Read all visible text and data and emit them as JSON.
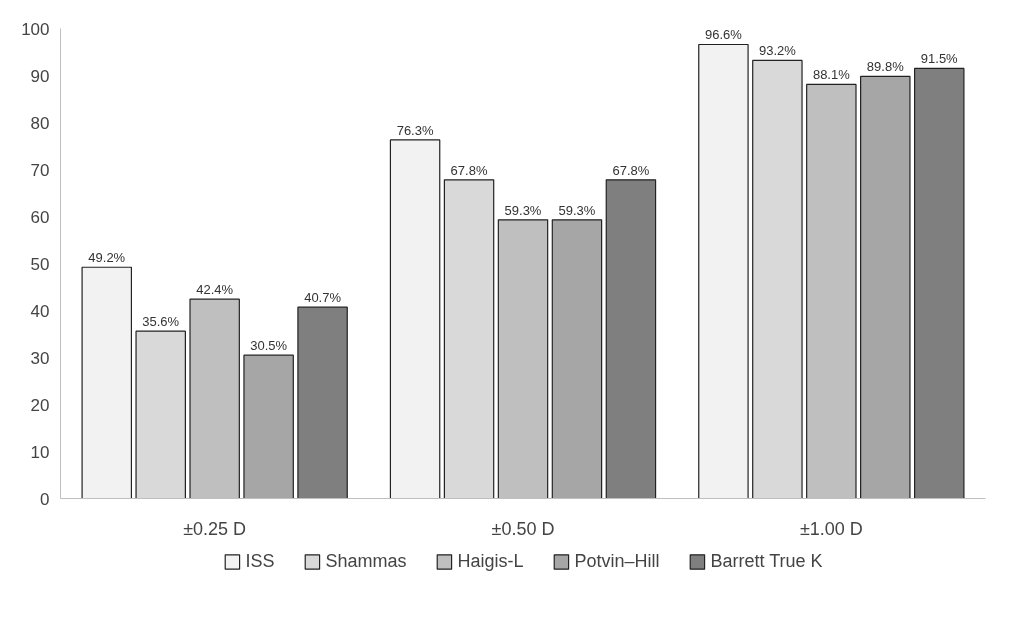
{
  "chart_data": {
    "type": "bar",
    "categories": [
      "±0.25 D",
      "±0.50 D",
      "±1.00 D"
    ],
    "series": [
      {
        "name": "ISS",
        "color": "#f2f2f2",
        "values": [
          49.2,
          76.3,
          96.6
        ],
        "value_labels": [
          "49.2%",
          "76.3%",
          "96.6%"
        ]
      },
      {
        "name": "Shammas",
        "color": "#d9d9d9",
        "values": [
          35.6,
          67.8,
          93.2
        ],
        "value_labels": [
          "35.6%",
          "67.8%",
          "93.2%"
        ]
      },
      {
        "name": "Haigis-L",
        "color": "#bfbfbf",
        "values": [
          42.4,
          59.3,
          88.1
        ],
        "value_labels": [
          "42.4%",
          "59.3%",
          "88.1%"
        ]
      },
      {
        "name": "Potvin–Hill",
        "color": "#a6a6a6",
        "values": [
          30.5,
          59.3,
          89.8
        ],
        "value_labels": [
          "30.5%",
          "59.3%",
          "89.8%"
        ]
      },
      {
        "name": "Barrett True K",
        "color": "#7f7f7f",
        "values": [
          40.7,
          67.8,
          91.5
        ],
        "value_labels": [
          "40.7%",
          "67.8%",
          "91.5%"
        ]
      }
    ],
    "ylim": [
      0,
      100
    ],
    "yticks": [
      0,
      10,
      20,
      30,
      40,
      50,
      60,
      70,
      80,
      90,
      100
    ],
    "grid": false,
    "legend": "bottom"
  }
}
